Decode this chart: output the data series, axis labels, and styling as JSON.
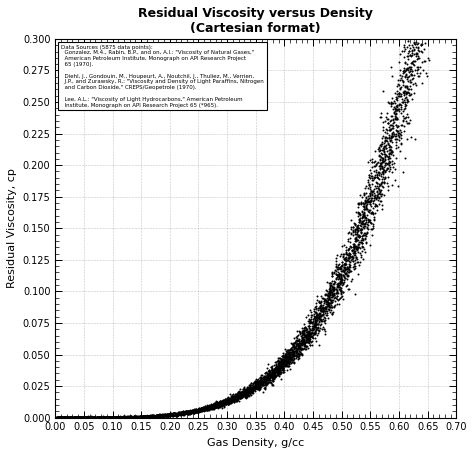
{
  "title_line1": "Residual Viscosity versus Density",
  "title_line2": "(Cartesian format)",
  "xlabel": "Gas Density, g/cc",
  "ylabel": "Residual Viscosity, cp",
  "xlim": [
    0.0,
    0.7
  ],
  "ylim": [
    0.0,
    0.3
  ],
  "xticks": [
    0.0,
    0.05,
    0.1,
    0.15,
    0.2,
    0.25,
    0.3,
    0.35,
    0.4,
    0.45,
    0.5,
    0.55,
    0.6,
    0.65,
    0.7
  ],
  "yticks": [
    0.0,
    0.025,
    0.05,
    0.075,
    0.1,
    0.125,
    0.15,
    0.175,
    0.2,
    0.225,
    0.25,
    0.275,
    0.3
  ],
  "annotation_text": "Data Sources (5875 data points):\n  Gonzalez, M.4., Rabin, B.P., and on, A.l.: \"Viscosity of Natural Gases,\"\n  American Petroleum Institute, Monograph on API Research Project\n  65 (1970).\n\n  Diehl, J., Gondouin, M., Houpeurt, A., Noutchil, J., Thuliez, M., Verrien,\n  J.P., and Zurawsky, R.: \"Viscosity and Density of Light Paraffins, Nitrogen\n  and Carbon Dioxide,\" CREPS/Geopetrole (1970).\n\n  Lee, A.L.: \"Viscosity of Light Hydrocarbons,\" American Petroleum\n  Institute, Monograph on API Research Project 65 (*965).",
  "dot_color": "#000000",
  "dot_size": 2.0,
  "bg_color": "#ffffff",
  "grid_color": "#aaaaaa",
  "annotation_box_color": "#ffffff",
  "seed": 42,
  "n_points": 5875,
  "curve_A": 3e-05,
  "curve_B": 12.5,
  "noise_rel": 0.08,
  "noise_abs": 0.0003
}
